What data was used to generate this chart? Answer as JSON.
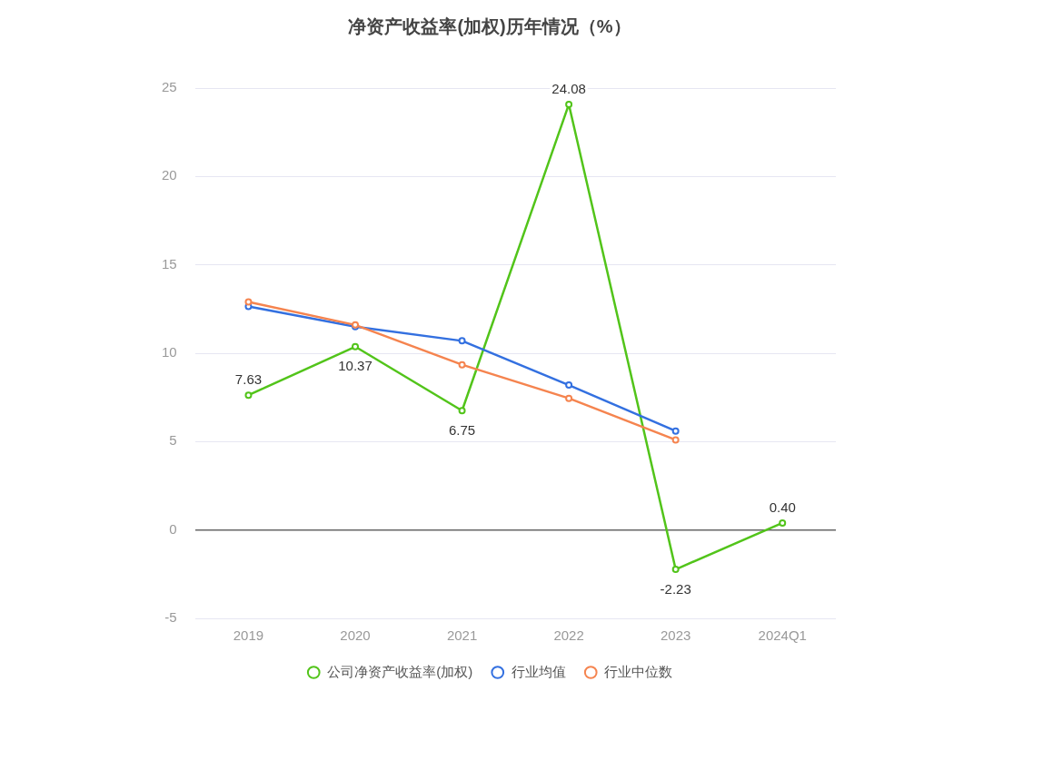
{
  "chart_data": {
    "type": "line",
    "title": "净资产收益率(加权)历年情况（%）",
    "categories": [
      "2019",
      "2020",
      "2021",
      "2022",
      "2023",
      "2024Q1"
    ],
    "series": [
      {
        "name": "公司净资产收益率(加权)",
        "color": "#52c41a",
        "values": [
          7.63,
          10.37,
          6.75,
          24.08,
          -2.23,
          0.4
        ],
        "value_labels": [
          "7.63",
          "10.37",
          "6.75",
          "24.08",
          "-2.23",
          "0.40"
        ]
      },
      {
        "name": "行业均值",
        "color": "#3370e0",
        "values": [
          12.65,
          11.5,
          10.7,
          8.2,
          5.6,
          null
        ]
      },
      {
        "name": "行业中位数",
        "color": "#f5844f",
        "values": [
          12.9,
          11.6,
          9.35,
          7.45,
          5.1,
          null
        ]
      }
    ],
    "ylim": [
      -5,
      25
    ],
    "yticks": [
      -5,
      0,
      5,
      10,
      15,
      20,
      25
    ],
    "grid": "y",
    "legend": "bottom",
    "marker": "circle",
    "line_style": "solid"
  }
}
